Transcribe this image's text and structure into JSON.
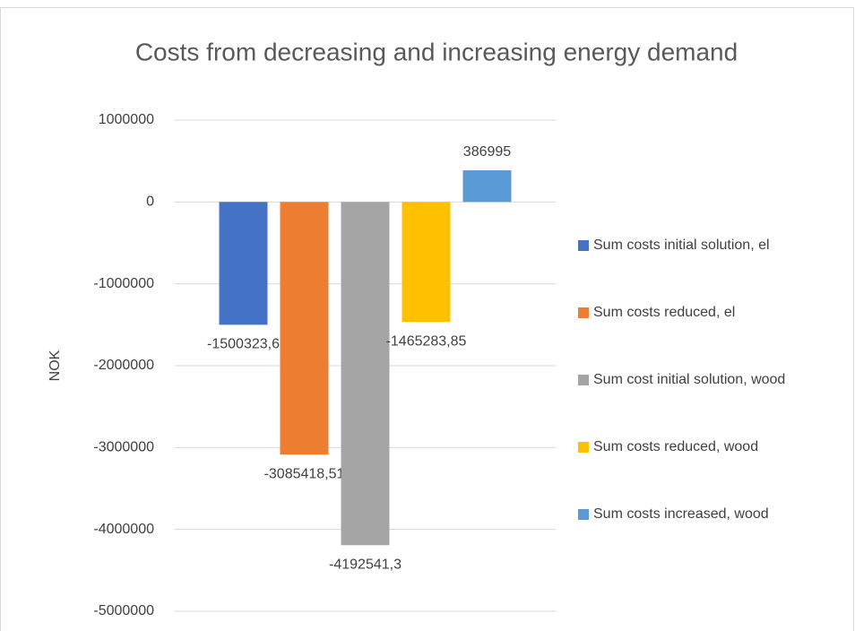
{
  "chart_data": {
    "type": "bar",
    "title": "Costs from decreasing and increasing energy demand",
    "y_label": "NOK",
    "series": [
      {
        "name": "Sum costs initial solution, el",
        "color": "#4472c4",
        "values": [
          -1500323.6
        ],
        "value_labels": [
          "-1500323,6"
        ]
      },
      {
        "name": "Sum costs reduced, el",
        "color": "#ed7d31",
        "values": [
          -3085418.51
        ],
        "value_labels": [
          "-3085418,51"
        ]
      },
      {
        "name": "Sum cost initial solution, wood",
        "color": "#a5a5a5",
        "values": [
          -4192541.3
        ],
        "value_labels": [
          "-4192541,3"
        ]
      },
      {
        "name": "Sum costs reduced, wood",
        "color": "#ffc000",
        "values": [
          -1465283.85
        ],
        "value_labels": [
          "-1465283,85"
        ]
      },
      {
        "name": "Sum costs increased, wood",
        "color": "#5b9bd5",
        "values": [
          386995
        ]
      }
    ],
    "ylim": [
      -5000000,
      1000000
    ],
    "yticks": [
      -5000000,
      -4000000,
      -3000000,
      -2000000,
      -1000000,
      0,
      1000000
    ],
    "grid": true,
    "legend": "right"
  }
}
